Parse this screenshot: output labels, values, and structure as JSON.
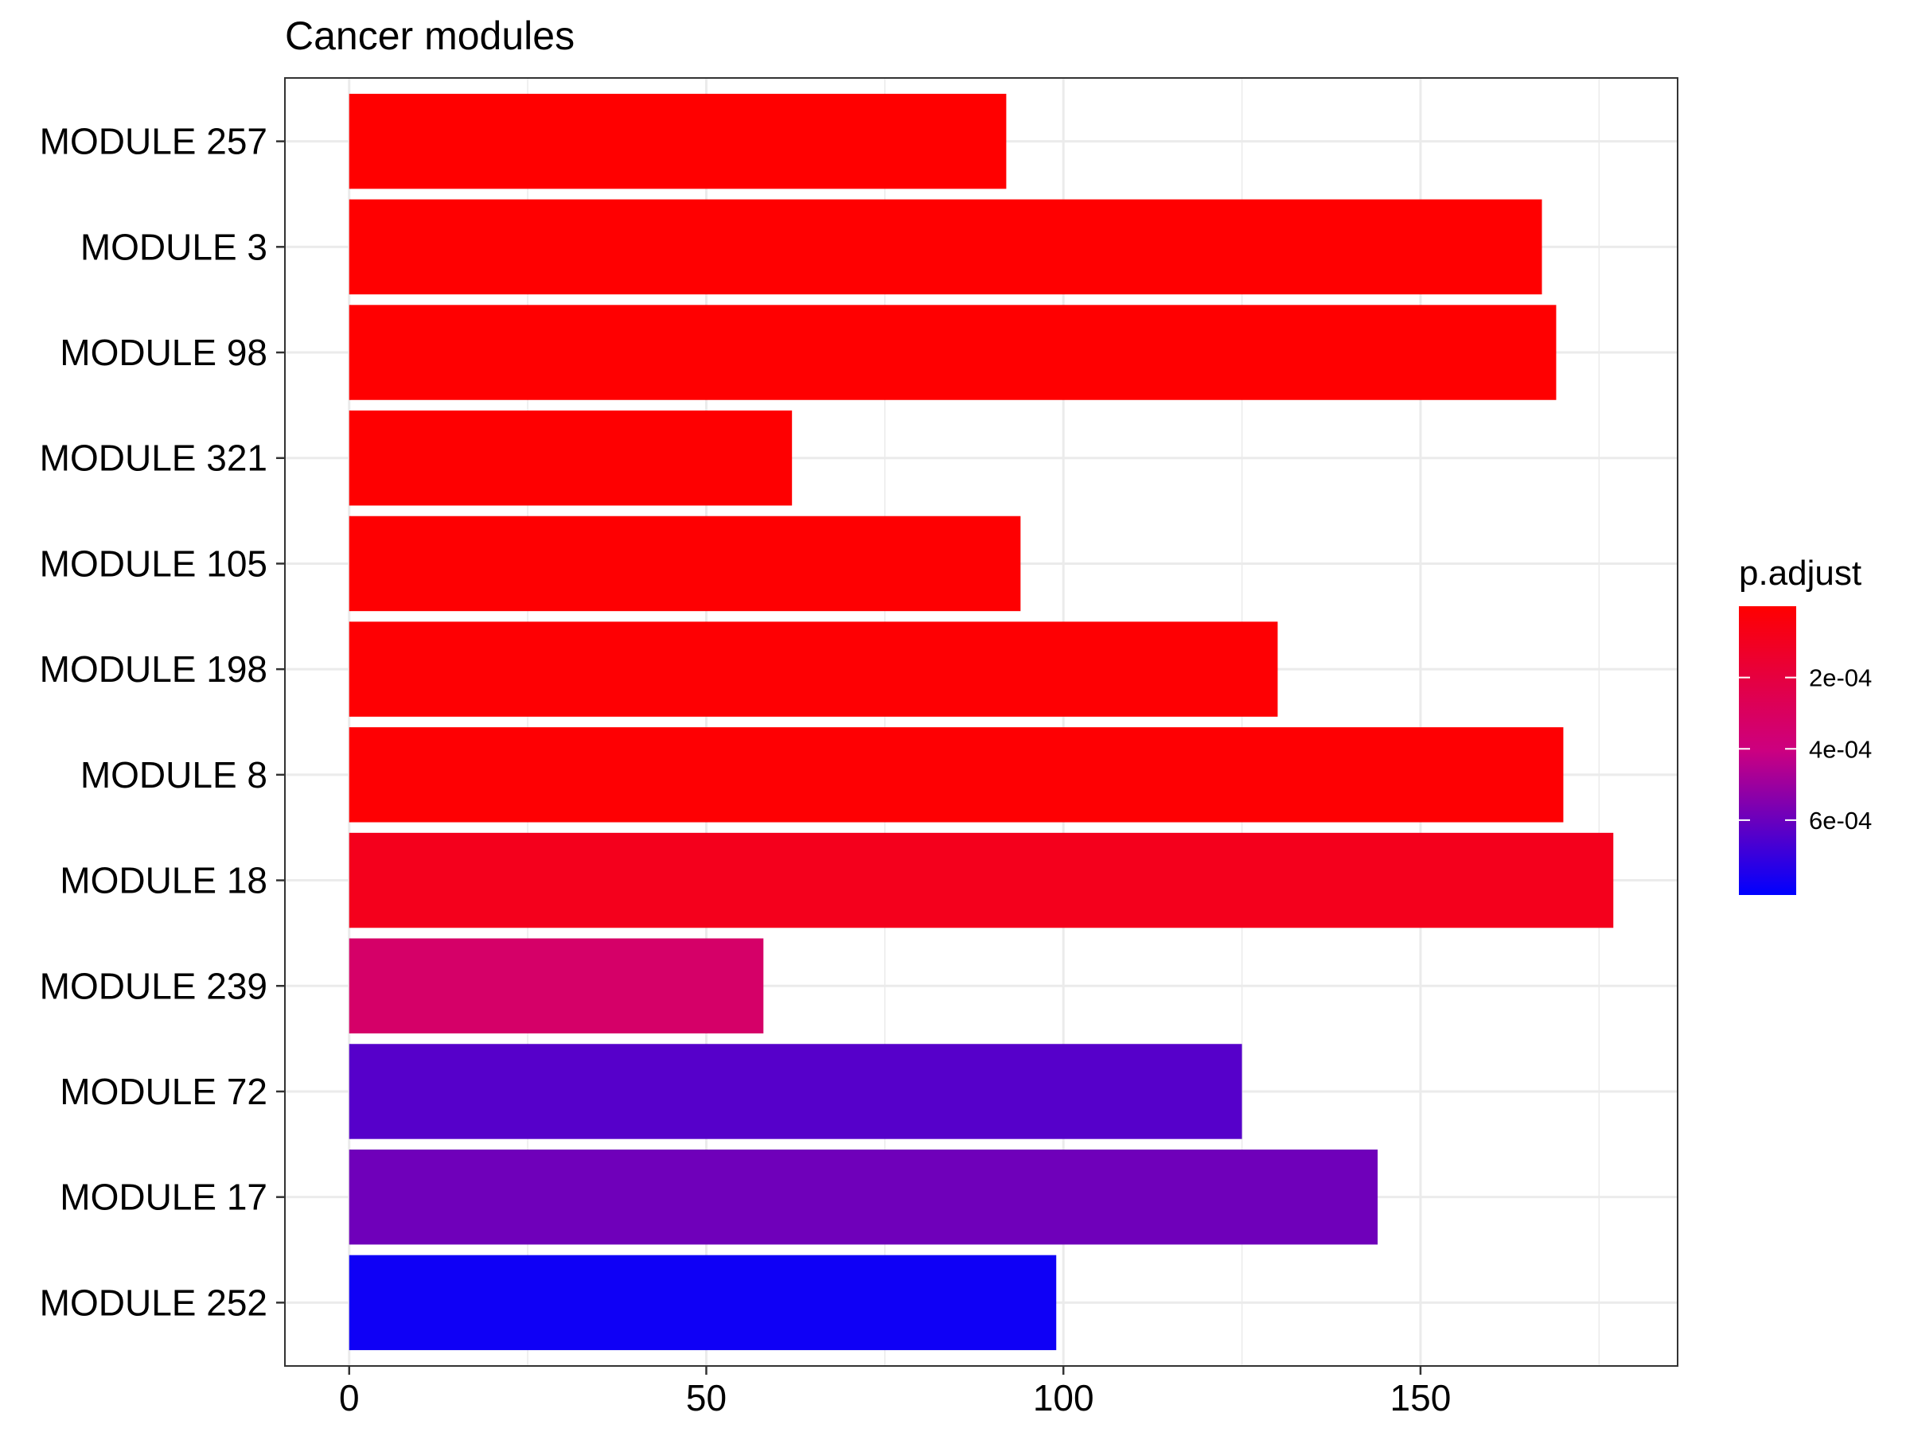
{
  "chart_data": {
    "type": "bar",
    "orientation": "horizontal",
    "title": "Cancer modules",
    "xlabel": "",
    "ylabel": "",
    "categories": [
      "MODULE 257",
      "MODULE 3",
      "MODULE 98",
      "MODULE 321",
      "MODULE 105",
      "MODULE 198",
      "MODULE 8",
      "MODULE 18",
      "MODULE 239",
      "MODULE 72",
      "MODULE 17",
      "MODULE 252"
    ],
    "values": [
      92,
      167,
      169,
      62,
      94,
      130,
      170,
      177,
      58,
      125,
      144,
      99
    ],
    "p_adjust": [
      1e-08,
      2e-06,
      3e-06,
      4e-06,
      6e-06,
      8e-06,
      1e-05,
      9e-05,
      0.00033,
      0.00064,
      0.00059,
      0.00078
    ],
    "xlim": [
      -9,
      186
    ],
    "x_ticks": [
      0,
      50,
      100,
      150
    ],
    "x_tick_labels": [
      "0",
      "50",
      "100",
      "150"
    ],
    "grid": true,
    "legend": {
      "title": "p.adjust",
      "placement": "right",
      "min": 0.0,
      "max": 0.00081,
      "ticks": [
        0.0002,
        0.0004,
        0.0006
      ],
      "tick_labels": [
        "2e-04",
        "4e-04",
        "6e-04"
      ],
      "color_low": "#ff0000",
      "color_high": "#0000ff"
    }
  }
}
